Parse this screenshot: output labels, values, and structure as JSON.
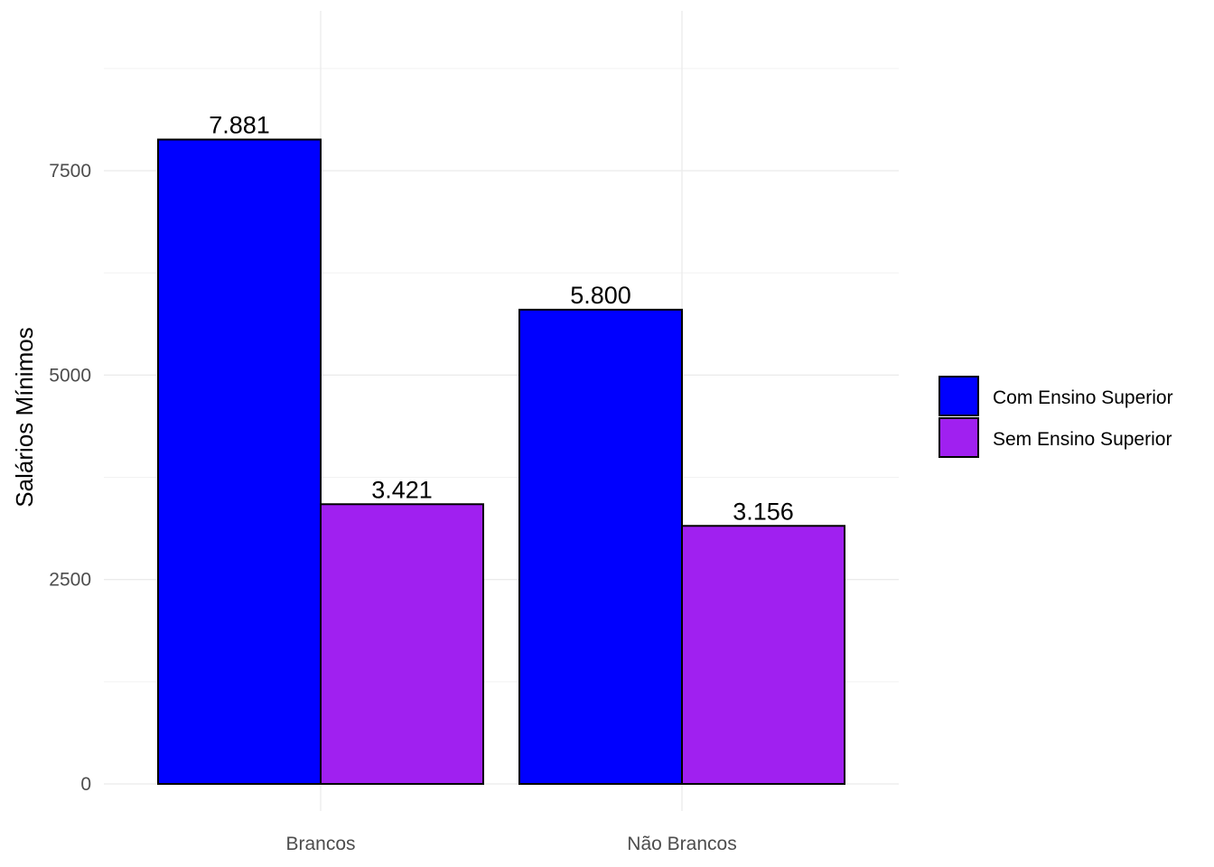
{
  "chart_data": {
    "type": "bar",
    "title": "",
    "xlabel": "",
    "ylabel": "Salários Mínimos",
    "categories": [
      "Brancos",
      "Não Brancos"
    ],
    "series": [
      {
        "name": "Com Ensino Superior",
        "color": "#0000ff",
        "values": [
          7881,
          5800
        ],
        "labels": [
          "7.881",
          "5.800"
        ]
      },
      {
        "name": "Sem Ensino Superior",
        "color": "#a020f0",
        "values": [
          3421,
          3156
        ],
        "labels": [
          "3.421",
          "3.156"
        ]
      }
    ],
    "ylim": [
      0,
      9000
    ],
    "yticks": [
      0,
      2500,
      5000,
      7500
    ],
    "ytick_labels": [
      "0",
      "2500",
      "5000",
      "7500"
    ],
    "grid": true,
    "legend_position": "right"
  }
}
